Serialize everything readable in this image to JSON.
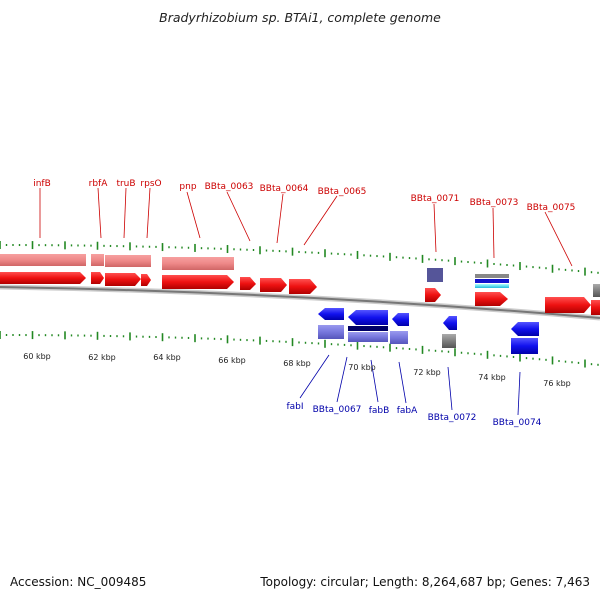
{
  "title": "Bradyrhizobium sp. BTAi1, complete genome",
  "footer": {
    "accession": "Accession: NC_009485",
    "info": "Topology: circular; Length: 8,264,687 bp; Genes: 7,463"
  },
  "colors": {
    "forward_cds": "#ee1111",
    "forward_feature": "#ee8888",
    "reverse_cds": "#1111ee",
    "reverse_feature": "#7777dd",
    "forward_label": "#cc0000",
    "reverse_label": "#0000aa",
    "scale_tick": "#228822",
    "backbone": "#888888"
  },
  "scale": {
    "unit": "kbp",
    "range_kbp": [
      56.5,
      78.2
    ],
    "labels": [
      {
        "kbp": 60,
        "text": "60 kbp"
      },
      {
        "kbp": 62,
        "text": "62 kbp"
      },
      {
        "kbp": 64,
        "text": "64 kbp"
      },
      {
        "kbp": 66,
        "text": "66 kbp"
      },
      {
        "kbp": 68,
        "text": "68 kbp"
      },
      {
        "kbp": 70,
        "text": "70 kbp"
      },
      {
        "kbp": 72,
        "text": "72 kbp"
      },
      {
        "kbp": 74,
        "text": "74 kbp"
      },
      {
        "kbp": 76,
        "text": "76 kbp"
      }
    ]
  },
  "forward_genes": [
    {
      "label": "infB",
      "start_kbp": 56.5,
      "end_kbp": 59.2
    },
    {
      "label": "rbfA",
      "start_kbp": 60.2,
      "end_kbp": 60.6
    },
    {
      "label": "truB",
      "start_kbp": 60.8,
      "end_kbp": 61.9
    },
    {
      "label": "rpsO",
      "start_kbp": 62.0,
      "end_kbp": 62.3
    },
    {
      "label": "pnp",
      "start_kbp": 62.7,
      "end_kbp": 64.9
    },
    {
      "label": "BBta_0063",
      "start_kbp": 65.0,
      "end_kbp": 65.5
    },
    {
      "label": "BBta_0064",
      "start_kbp": 65.8,
      "end_kbp": 66.7
    },
    {
      "label": "BBta_0065",
      "start_kbp": 67.0,
      "end_kbp": 67.9
    },
    {
      "label": "BBta_0071",
      "start_kbp": 72.0,
      "end_kbp": 72.5
    },
    {
      "label": "BBta_0073",
      "start_kbp": 73.5,
      "end_kbp": 74.5
    },
    {
      "label": "BBta_0075",
      "start_kbp": 75.8,
      "end_kbp": 77.2
    },
    {
      "label": "",
      "start_kbp": 77.6,
      "end_kbp": 78.2
    }
  ],
  "reverse_genes": [
    {
      "label": "fabI",
      "start_kbp": 67.9,
      "end_kbp": 68.8
    },
    {
      "label": "BBta_0067",
      "start_kbp": 69.1,
      "end_kbp": 70.3
    },
    {
      "label": "fabB",
      "start_kbp": 70.1,
      "end_kbp": 71.4
    },
    {
      "label": "fabA",
      "start_kbp": 71.6,
      "end_kbp": 72.0
    },
    {
      "label": "BBta_0072",
      "start_kbp": 73.1,
      "end_kbp": 73.5
    },
    {
      "label": "BBta_0074",
      "start_kbp": 75.1,
      "end_kbp": 75.9
    }
  ]
}
